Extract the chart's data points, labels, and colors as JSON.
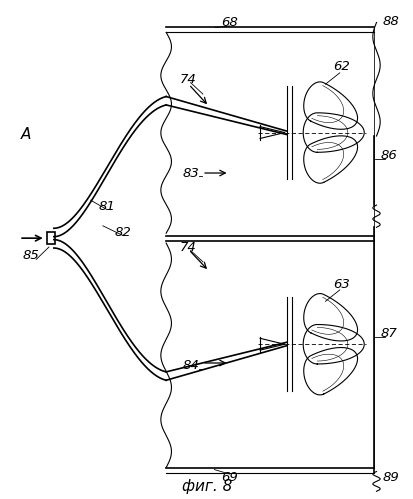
{
  "title": "фиг. 8",
  "bg_color": "#ffffff",
  "line_color": "#000000",
  "fig_width": 4.14,
  "fig_height": 4.99,
  "dpi": 100
}
